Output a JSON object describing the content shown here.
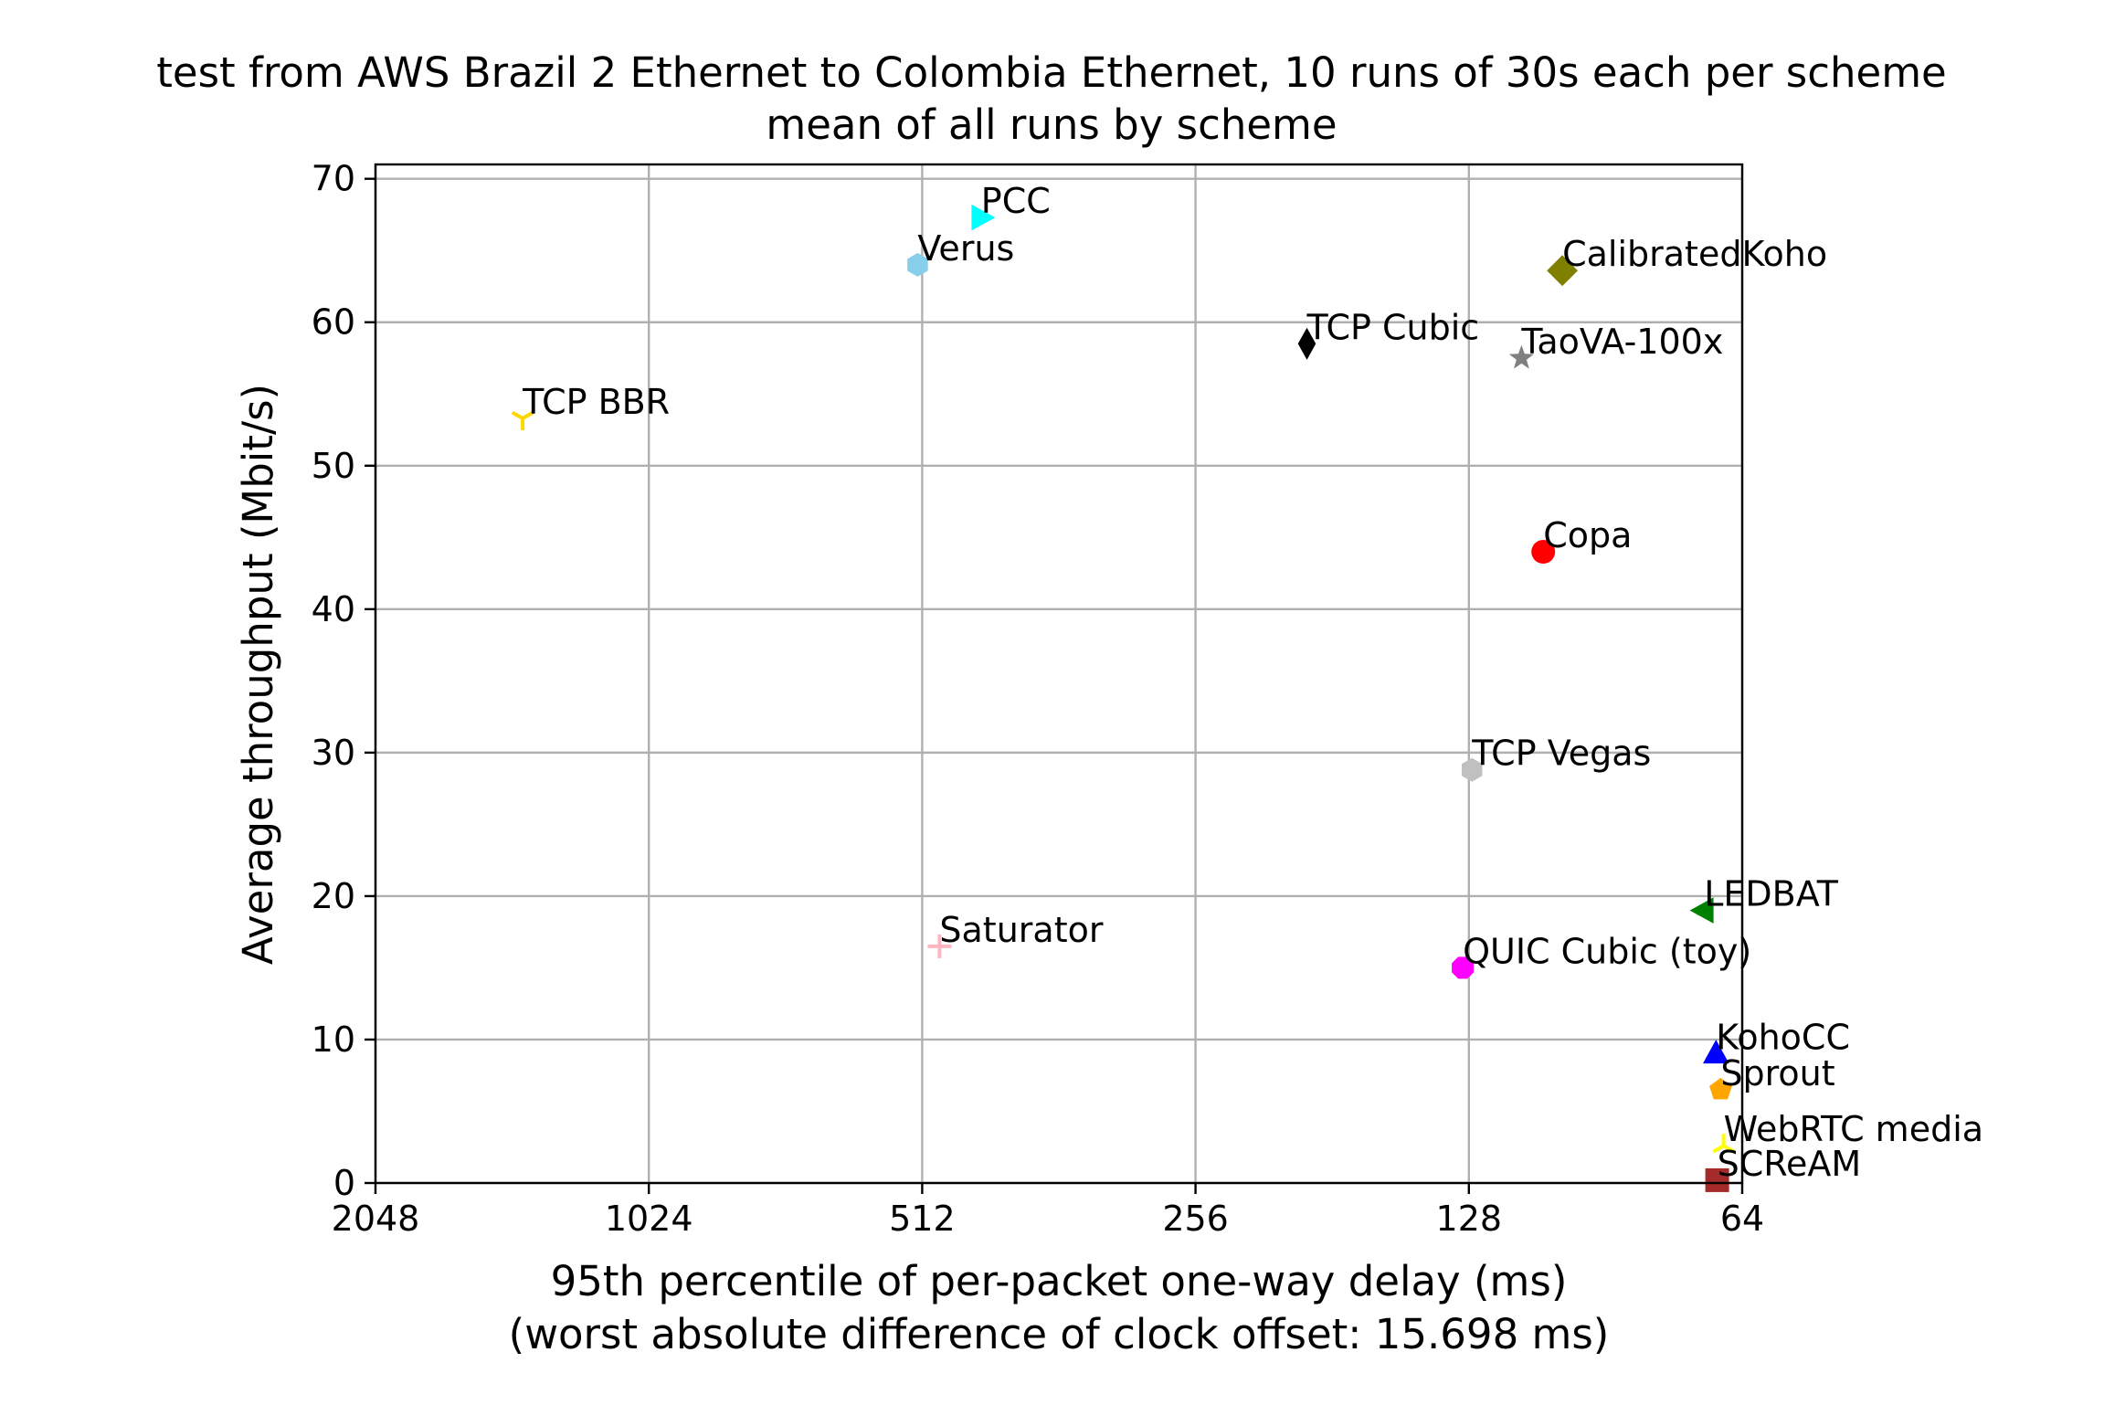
{
  "chart_data": {
    "type": "scatter",
    "title_line1": "test from AWS Brazil 2 Ethernet to Colombia Ethernet, 10 runs of 30s each per scheme",
    "title_line2": "mean of all runs by scheme",
    "xlabel_line1": "95th percentile of per-packet one-way delay (ms)",
    "xlabel_line2": "(worst absolute difference of clock offset: 15.698 ms)",
    "ylabel": "Average throughput (Mbit/s)",
    "x_scale": "log2",
    "x_inverted": true,
    "xlim": [
      2048,
      64
    ],
    "ylim": [
      0,
      71
    ],
    "x_ticks": [
      {
        "value": 2048,
        "label": "2048"
      },
      {
        "value": 1024,
        "label": "1024"
      },
      {
        "value": 512,
        "label": "512"
      },
      {
        "value": 256,
        "label": "256"
      },
      {
        "value": 128,
        "label": "128"
      },
      {
        "value": 64,
        "label": "64"
      }
    ],
    "y_ticks": [
      {
        "value": 0,
        "label": "0"
      },
      {
        "value": 10,
        "label": "10"
      },
      {
        "value": 20,
        "label": "20"
      },
      {
        "value": 30,
        "label": "30"
      },
      {
        "value": 40,
        "label": "40"
      },
      {
        "value": 50,
        "label": "50"
      },
      {
        "value": 60,
        "label": "60"
      },
      {
        "value": 70,
        "label": "70"
      }
    ],
    "grid": true,
    "points": [
      {
        "name": "TCP BBR",
        "delay_ms": 1410,
        "throughput": 53.3,
        "marker": "tri_down",
        "color": "#ffd700"
      },
      {
        "name": "Verus",
        "delay_ms": 518,
        "throughput": 64.0,
        "marker": "hexagon",
        "color": "#87ceeb"
      },
      {
        "name": "PCC",
        "delay_ms": 441,
        "throughput": 67.3,
        "marker": "triangle_right",
        "color": "#00ffff"
      },
      {
        "name": "Saturator",
        "delay_ms": 490,
        "throughput": 16.5,
        "marker": "plus",
        "color": "#ffb6c1"
      },
      {
        "name": "TCP Cubic",
        "delay_ms": 193,
        "throughput": 58.5,
        "marker": "thin_diamond",
        "color": "#000000"
      },
      {
        "name": "TCP Vegas",
        "delay_ms": 127,
        "throughput": 28.8,
        "marker": "hexagon",
        "color": "#c0c0c0"
      },
      {
        "name": "QUIC Cubic (toy)",
        "delay_ms": 130,
        "throughput": 15.0,
        "marker": "octagon",
        "color": "#ff00ff"
      },
      {
        "name": "TaoVA-100x",
        "delay_ms": 112,
        "throughput": 57.5,
        "marker": "star",
        "color": "#808080"
      },
      {
        "name": "Copa",
        "delay_ms": 106,
        "throughput": 44.0,
        "marker": "circle",
        "color": "#ff0000"
      },
      {
        "name": "CalibratedKoho",
        "delay_ms": 101,
        "throughput": 63.6,
        "marker": "diamond",
        "color": "#808000"
      },
      {
        "name": "LEDBAT",
        "delay_ms": 70.5,
        "throughput": 19.0,
        "marker": "triangle_left",
        "color": "#008000"
      },
      {
        "name": "KohoCC",
        "delay_ms": 68.4,
        "throughput": 9.0,
        "marker": "triangle_up",
        "color": "#0000ff"
      },
      {
        "name": "Sprout",
        "delay_ms": 67.6,
        "throughput": 6.5,
        "marker": "pentagon",
        "color": "#ffa500"
      },
      {
        "name": "WebRTC media",
        "delay_ms": 67.1,
        "throughput": 2.6,
        "marker": "tri_up",
        "color": "#ffff00"
      },
      {
        "name": "SCReAM",
        "delay_ms": 68.2,
        "throughput": 0.2,
        "marker": "square",
        "color": "#a52a2a"
      }
    ]
  }
}
